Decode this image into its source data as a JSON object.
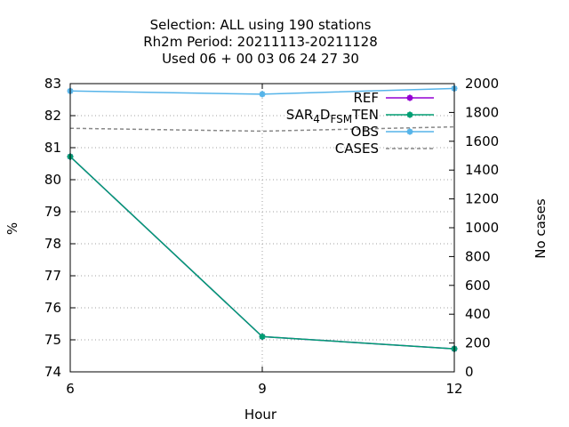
{
  "chart_data": {
    "type": "line",
    "title_lines": [
      "Selection: ALL using   190 stations",
      "Rh2m   Period: 20211113-20211128",
      "Used  06 + 00 03 06 24 27 30"
    ],
    "xlabel": "Hour",
    "ylabel": "%",
    "y2label": "No cases",
    "xlim": [
      6,
      12
    ],
    "ylim": [
      74,
      83
    ],
    "y2lim": [
      0,
      2000
    ],
    "xticks": [
      6,
      9,
      12
    ],
    "yticks": [
      74,
      75,
      76,
      77,
      78,
      79,
      80,
      81,
      82,
      83
    ],
    "y2ticks": [
      0,
      200,
      400,
      600,
      800,
      1000,
      1200,
      1400,
      1600,
      1800,
      2000
    ],
    "grid": true,
    "legend_position": "top-right",
    "series": [
      {
        "name": "REF",
        "axis": "y",
        "color": "#9400d3",
        "dash": false,
        "marker": true,
        "x": [
          6,
          9,
          12
        ],
        "y": [
          80.72,
          75.1,
          74.72
        ]
      },
      {
        "name": "SAR_4D_FS_M_TEN",
        "name_parts": {
          "base": "SAR",
          "sub1": "4",
          "mid": "D",
          "sub2": "FS",
          "sub3": "M",
          "end": "TEN"
        },
        "axis": "y",
        "color": "#009e73",
        "dash": false,
        "marker": true,
        "x": [
          6,
          9,
          12
        ],
        "y": [
          80.72,
          75.1,
          74.72
        ]
      },
      {
        "name": "OBS",
        "axis": "y",
        "color": "#56b4e9",
        "dash": false,
        "marker": true,
        "x": [
          6,
          9,
          12
        ],
        "y": [
          82.77,
          82.67,
          82.85
        ]
      },
      {
        "name": "CASES",
        "axis": "y2",
        "color": "#888888",
        "dash": true,
        "marker": false,
        "x": [
          6,
          9,
          12
        ],
        "y": [
          1690,
          1670,
          1700
        ]
      }
    ]
  }
}
